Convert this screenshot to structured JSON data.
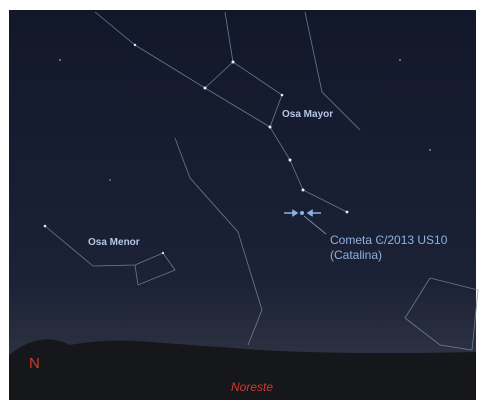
{
  "labels": {
    "constellations": [
      "Osa Mayor",
      "Osa Menor"
    ],
    "comet": {
      "name": "Cometa C/2013 US10",
      "alias": "(Catalina)"
    },
    "cardinal": "N",
    "direction": "Noreste"
  }
}
